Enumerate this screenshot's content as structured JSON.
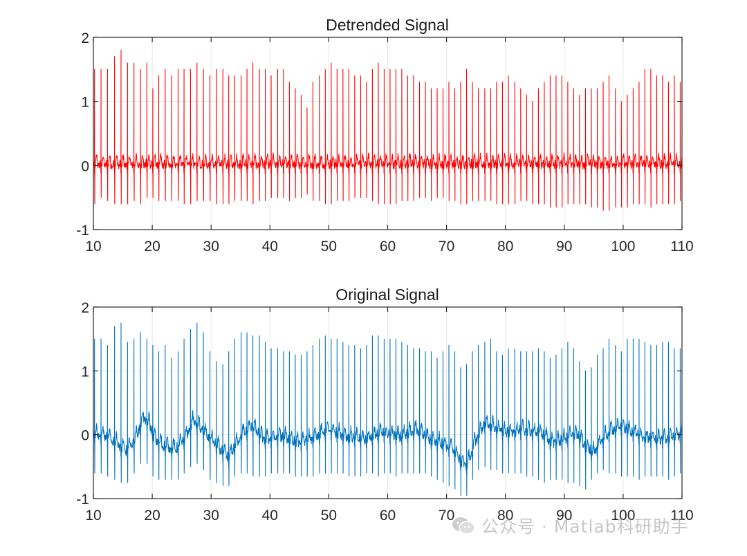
{
  "chart_data": [
    {
      "type": "line",
      "title": "Detrended Signal",
      "xlabel": "",
      "ylabel": "",
      "xlim": [
        10,
        110
      ],
      "ylim": [
        -1,
        2
      ],
      "xticks": [
        10,
        20,
        30,
        40,
        50,
        60,
        70,
        80,
        90,
        100,
        110
      ],
      "yticks": [
        -1,
        0,
        1,
        2
      ],
      "grid": true,
      "line_color": "#ff0000",
      "series": [
        {
          "name": "",
          "baseline_trend": [
            [
              10,
              0
            ],
            [
              110,
              0
            ]
          ],
          "beat_times": [
            10.2,
            11.3,
            12.4,
            13.6,
            14.7,
            15.8,
            16.9,
            18.0,
            19.1,
            20.1,
            21.1,
            22.2,
            23.3,
            24.4,
            25.4,
            26.5,
            27.6,
            28.7,
            29.8,
            30.9,
            32.0,
            33.0,
            34.0,
            35.1,
            36.1,
            37.1,
            38.2,
            39.2,
            40.2,
            41.3,
            42.3,
            43.3,
            44.3,
            45.3,
            46.3,
            47.3,
            48.4,
            49.4,
            50.4,
            51.4,
            52.4,
            53.4,
            54.4,
            55.4,
            56.4,
            57.4,
            58.4,
            59.4,
            60.4,
            61.4,
            62.4,
            63.4,
            64.4,
            65.4,
            66.4,
            67.4,
            68.4,
            69.4,
            70.4,
            71.4,
            72.4,
            73.4,
            74.4,
            75.4,
            76.5,
            77.5,
            78.5,
            79.5,
            80.5,
            81.6,
            82.6,
            83.6,
            84.6,
            85.6,
            86.6,
            87.6,
            88.6,
            89.6,
            90.6,
            91.6,
            92.6,
            93.6,
            94.6,
            95.6,
            96.6,
            97.6,
            98.7,
            99.7,
            100.7,
            101.7,
            102.7,
            103.7,
            104.7,
            105.7,
            106.7,
            107.7,
            108.7,
            109.7
          ],
          "r_peaks": [
            1.5,
            1.5,
            1.5,
            1.7,
            1.8,
            1.6,
            1.6,
            1.5,
            1.6,
            1.2,
            1.4,
            1.5,
            1.4,
            1.5,
            1.5,
            1.5,
            1.6,
            1.5,
            1.4,
            1.5,
            1.5,
            1.4,
            1.4,
            1.4,
            1.5,
            1.6,
            1.5,
            1.5,
            1.4,
            1.5,
            1.5,
            1.3,
            1.2,
            1.1,
            0.9,
            1.3,
            1.4,
            1.5,
            1.6,
            1.5,
            1.5,
            1.5,
            1.4,
            1.4,
            1.3,
            1.5,
            1.6,
            1.5,
            1.5,
            1.5,
            1.5,
            1.4,
            1.4,
            1.3,
            1.3,
            1.2,
            1.2,
            1.2,
            1.3,
            1.2,
            1.3,
            1.5,
            1.3,
            1.2,
            1.2,
            1.2,
            1.3,
            1.3,
            1.4,
            1.3,
            1.2,
            1.1,
            1.0,
            1.2,
            1.3,
            1.4,
            1.4,
            1.4,
            1.3,
            1.2,
            1.1,
            1.2,
            1.2,
            1.2,
            1.3,
            1.4,
            1.2,
            1.0,
            1.1,
            1.2,
            1.3,
            1.5,
            1.5,
            1.4,
            1.4,
            1.3,
            1.4,
            1.3
          ],
          "s_troughs": [
            -0.6,
            -0.5,
            -0.55,
            -0.6,
            -0.6,
            -0.6,
            -0.55,
            -0.6,
            -0.5,
            -0.5,
            -0.55,
            -0.55,
            -0.55,
            -0.55,
            -0.6,
            -0.6,
            -0.55,
            -0.55,
            -0.55,
            -0.6,
            -0.6,
            -0.6,
            -0.55,
            -0.55,
            -0.55,
            -0.6,
            -0.55,
            -0.55,
            -0.5,
            -0.5,
            -0.5,
            -0.55,
            -0.5,
            -0.5,
            -0.45,
            -0.55,
            -0.55,
            -0.6,
            -0.6,
            -0.55,
            -0.55,
            -0.55,
            -0.5,
            -0.5,
            -0.5,
            -0.55,
            -0.6,
            -0.6,
            -0.6,
            -0.6,
            -0.55,
            -0.55,
            -0.55,
            -0.5,
            -0.5,
            -0.55,
            -0.5,
            -0.5,
            -0.55,
            -0.55,
            -0.6,
            -0.6,
            -0.55,
            -0.55,
            -0.55,
            -0.55,
            -0.6,
            -0.6,
            -0.6,
            -0.6,
            -0.55,
            -0.55,
            -0.6,
            -0.6,
            -0.6,
            -0.65,
            -0.65,
            -0.65,
            -0.6,
            -0.6,
            -0.6,
            -0.6,
            -0.65,
            -0.65,
            -0.7,
            -0.7,
            -0.65,
            -0.65,
            -0.65,
            -0.6,
            -0.6,
            -0.6,
            -0.65,
            -0.6,
            -0.6,
            -0.6,
            -0.6,
            -0.55
          ],
          "t_wave": 0.25,
          "noise_level": 0.05
        }
      ]
    },
    {
      "type": "line",
      "title": "Original Signal",
      "xlabel": "",
      "ylabel": "",
      "xlim": [
        10,
        110
      ],
      "ylim": [
        -1,
        2
      ],
      "xticks": [
        10,
        20,
        30,
        40,
        50,
        60,
        70,
        80,
        90,
        100,
        110
      ],
      "yticks": [
        -1,
        0,
        1,
        2
      ],
      "grid": true,
      "line_color": "#0072bd",
      "series": [
        {
          "name": "",
          "baseline_trend": [
            [
              10,
              0
            ],
            [
              12,
              -0.05
            ],
            [
              14,
              -0.15
            ],
            [
              15.5,
              -0.28
            ],
            [
              17,
              -0.12
            ],
            [
              18.5,
              0.25
            ],
            [
              19.5,
              0.15
            ],
            [
              20.5,
              -0.1
            ],
            [
              22,
              -0.2
            ],
            [
              24,
              -0.25
            ],
            [
              25.5,
              -0.1
            ],
            [
              27,
              0.2
            ],
            [
              28,
              0.1
            ],
            [
              30,
              -0.1
            ],
            [
              32,
              -0.3
            ],
            [
              33,
              -0.38
            ],
            [
              35,
              -0.05
            ],
            [
              37,
              0.1
            ],
            [
              39,
              -0.1
            ],
            [
              42,
              -0.05
            ],
            [
              45,
              -0.15
            ],
            [
              47,
              -0.1
            ],
            [
              50,
              0.05
            ],
            [
              53,
              -0.05
            ],
            [
              56,
              -0.1
            ],
            [
              59,
              0.0
            ],
            [
              62,
              -0.05
            ],
            [
              65,
              0.05
            ],
            [
              67,
              -0.1
            ],
            [
              69,
              -0.15
            ],
            [
              71,
              -0.25
            ],
            [
              72.5,
              -0.45
            ],
            [
              73.5,
              -0.5
            ],
            [
              75,
              -0.1
            ],
            [
              76.5,
              0.15
            ],
            [
              78,
              0.1
            ],
            [
              80,
              0.0
            ],
            [
              83,
              0.05
            ],
            [
              86,
              0.0
            ],
            [
              88,
              -0.15
            ],
            [
              90,
              -0.1
            ],
            [
              92,
              0.0
            ],
            [
              93.5,
              -0.2
            ],
            [
              95,
              -0.3
            ],
            [
              96.5,
              -0.1
            ],
            [
              98,
              0.05
            ],
            [
              100,
              0.1
            ],
            [
              103,
              -0.05
            ],
            [
              106,
              -0.1
            ],
            [
              109,
              -0.05
            ],
            [
              110,
              0.0
            ]
          ],
          "beat_times": [
            10.2,
            11.3,
            12.4,
            13.6,
            14.7,
            15.8,
            16.9,
            18.0,
            19.1,
            20.1,
            21.1,
            22.2,
            23.3,
            24.4,
            25.4,
            26.5,
            27.6,
            28.7,
            29.8,
            30.9,
            32.0,
            33.0,
            34.0,
            35.1,
            36.1,
            37.1,
            38.2,
            39.2,
            40.2,
            41.3,
            42.3,
            43.3,
            44.3,
            45.3,
            46.3,
            47.3,
            48.4,
            49.4,
            50.4,
            51.4,
            52.4,
            53.4,
            54.4,
            55.4,
            56.4,
            57.4,
            58.4,
            59.4,
            60.4,
            61.4,
            62.4,
            63.4,
            64.4,
            65.4,
            66.4,
            67.4,
            68.4,
            69.4,
            70.4,
            71.4,
            72.4,
            73.4,
            74.4,
            75.4,
            76.5,
            77.5,
            78.5,
            79.5,
            80.5,
            81.6,
            82.6,
            83.6,
            84.6,
            85.6,
            86.6,
            87.6,
            88.6,
            89.6,
            90.6,
            91.6,
            92.6,
            93.6,
            94.6,
            95.6,
            96.6,
            97.6,
            98.7,
            99.7,
            100.7,
            101.7,
            102.7,
            103.7,
            104.7,
            105.7,
            106.7,
            107.7,
            108.7,
            109.7
          ],
          "r_peaks": [
            1.5,
            1.5,
            1.4,
            1.7,
            1.75,
            1.45,
            1.5,
            1.6,
            1.5,
            1.4,
            1.3,
            1.4,
            1.2,
            1.3,
            1.5,
            1.65,
            1.75,
            1.6,
            1.3,
            1.15,
            1.1,
            1.3,
            1.5,
            1.6,
            1.6,
            1.55,
            1.55,
            1.45,
            1.35,
            1.35,
            1.3,
            1.3,
            1.25,
            1.25,
            1.3,
            1.4,
            1.5,
            1.55,
            1.5,
            1.5,
            1.45,
            1.4,
            1.4,
            1.35,
            1.4,
            1.55,
            1.55,
            1.5,
            1.5,
            1.5,
            1.45,
            1.4,
            1.35,
            1.35,
            1.3,
            1.3,
            1.2,
            1.3,
            1.4,
            1.3,
            1.05,
            1.1,
            1.3,
            1.4,
            1.45,
            1.5,
            1.3,
            1.25,
            1.35,
            1.35,
            1.3,
            1.3,
            1.3,
            1.35,
            1.3,
            1.2,
            1.25,
            1.35,
            1.45,
            1.35,
            1.15,
            1.0,
            1.05,
            1.25,
            1.35,
            1.5,
            1.4,
            1.3,
            1.5,
            1.5,
            1.5,
            1.45,
            1.4,
            1.4,
            1.45,
            1.45,
            1.35,
            1.35
          ],
          "s_troughs": [
            -0.6,
            -0.6,
            -0.65,
            -0.7,
            -0.75,
            -0.75,
            -0.6,
            -0.45,
            -0.45,
            -0.65,
            -0.7,
            -0.7,
            -0.7,
            -0.7,
            -0.6,
            -0.5,
            -0.45,
            -0.55,
            -0.7,
            -0.75,
            -0.8,
            -0.8,
            -0.65,
            -0.6,
            -0.6,
            -0.65,
            -0.65,
            -0.65,
            -0.6,
            -0.6,
            -0.6,
            -0.6,
            -0.65,
            -0.65,
            -0.65,
            -0.65,
            -0.6,
            -0.6,
            -0.6,
            -0.6,
            -0.6,
            -0.65,
            -0.65,
            -0.65,
            -0.6,
            -0.6,
            -0.65,
            -0.6,
            -0.6,
            -0.65,
            -0.6,
            -0.6,
            -0.6,
            -0.6,
            -0.6,
            -0.65,
            -0.7,
            -0.75,
            -0.8,
            -0.85,
            -0.95,
            -0.95,
            -0.7,
            -0.55,
            -0.5,
            -0.55,
            -0.55,
            -0.6,
            -0.6,
            -0.6,
            -0.6,
            -0.65,
            -0.65,
            -0.7,
            -0.75,
            -0.7,
            -0.7,
            -0.7,
            -0.75,
            -0.75,
            -0.8,
            -0.85,
            -0.7,
            -0.6,
            -0.55,
            -0.6,
            -0.6,
            -0.65,
            -0.65,
            -0.65,
            -0.7,
            -0.65,
            -0.65,
            -0.65,
            -0.65,
            -0.7,
            -0.65,
            -0.6
          ],
          "t_wave": 0.25,
          "noise_level": 0.06
        }
      ]
    }
  ],
  "watermark": {
    "text": "公众号 · Matlab科研助手",
    "icon": "wechat-icon"
  }
}
